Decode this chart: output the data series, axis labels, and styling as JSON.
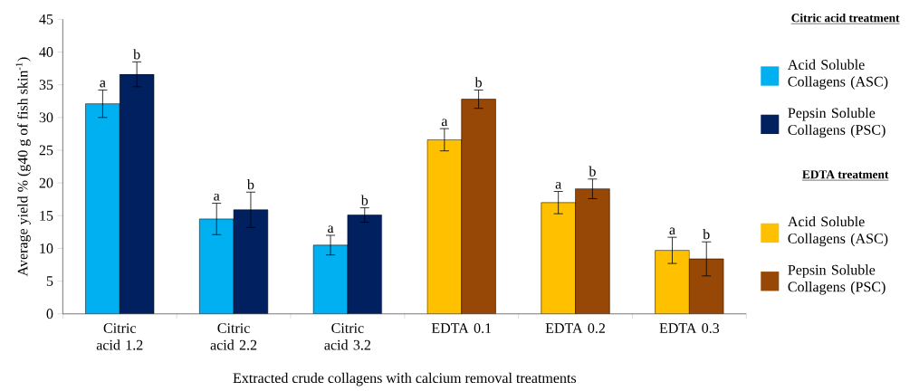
{
  "chart_data": {
    "type": "bar",
    "xlabel": "Extracted crude collagens with calcium removal treatments",
    "ylabel": "Average yield % (g40 g of fish skin$^{-1}$)",
    "categories": [
      "Citric acid 1.2",
      "Citric acid 2.2",
      "Citric acid 3.2",
      "EDTA 0.1",
      "EDTA 0.2",
      "EDTA 0.3"
    ],
    "legend_title": "Citric acid treatment",
    "annotations": [
      "EDTA treatment"
    ],
    "series": [
      {
        "name": "Acid Soluble Collagens (ASC)",
        "color": "#00b0f0",
        "values": [
          32.1,
          14.5,
          10.5,
          null,
          null,
          null
        ],
        "errors": [
          2.1,
          2.4,
          1.5,
          null,
          null,
          null
        ],
        "value_labels": [
          "a",
          "a",
          "a",
          null,
          null,
          null
        ]
      },
      {
        "name": "Pepsin Soluble Collagens (PSC)",
        "color": "#002060",
        "values": [
          36.6,
          15.9,
          15.1,
          null,
          null,
          null
        ],
        "errors": [
          1.9,
          2.7,
          1.1,
          null,
          null,
          null
        ],
        "value_labels": [
          "b",
          "b",
          "b",
          null,
          null,
          null
        ]
      },
      {
        "name": "Acid Soluble Collagens (ASC)",
        "color": "#ffc000",
        "values": [
          null,
          null,
          null,
          26.6,
          17.0,
          9.7
        ],
        "errors": [
          null,
          null,
          null,
          1.7,
          1.7,
          2.0
        ],
        "value_labels": [
          null,
          null,
          null,
          "a",
          "a",
          "a"
        ]
      },
      {
        "name": "Pepsin Soluble Collagens (PSC)",
        "color": "#974706",
        "values": [
          null,
          null,
          null,
          32.8,
          19.1,
          8.4
        ],
        "errors": [
          null,
          null,
          null,
          1.4,
          1.5,
          2.6
        ],
        "value_labels": [
          null,
          null,
          null,
          "b",
          "b",
          "b"
        ]
      }
    ],
    "ylim": [
      0,
      45
    ],
    "yticks": [
      0,
      5,
      10,
      15,
      20,
      25,
      30,
      35,
      40,
      45
    ],
    "legend": "right",
    "grid": false
  }
}
